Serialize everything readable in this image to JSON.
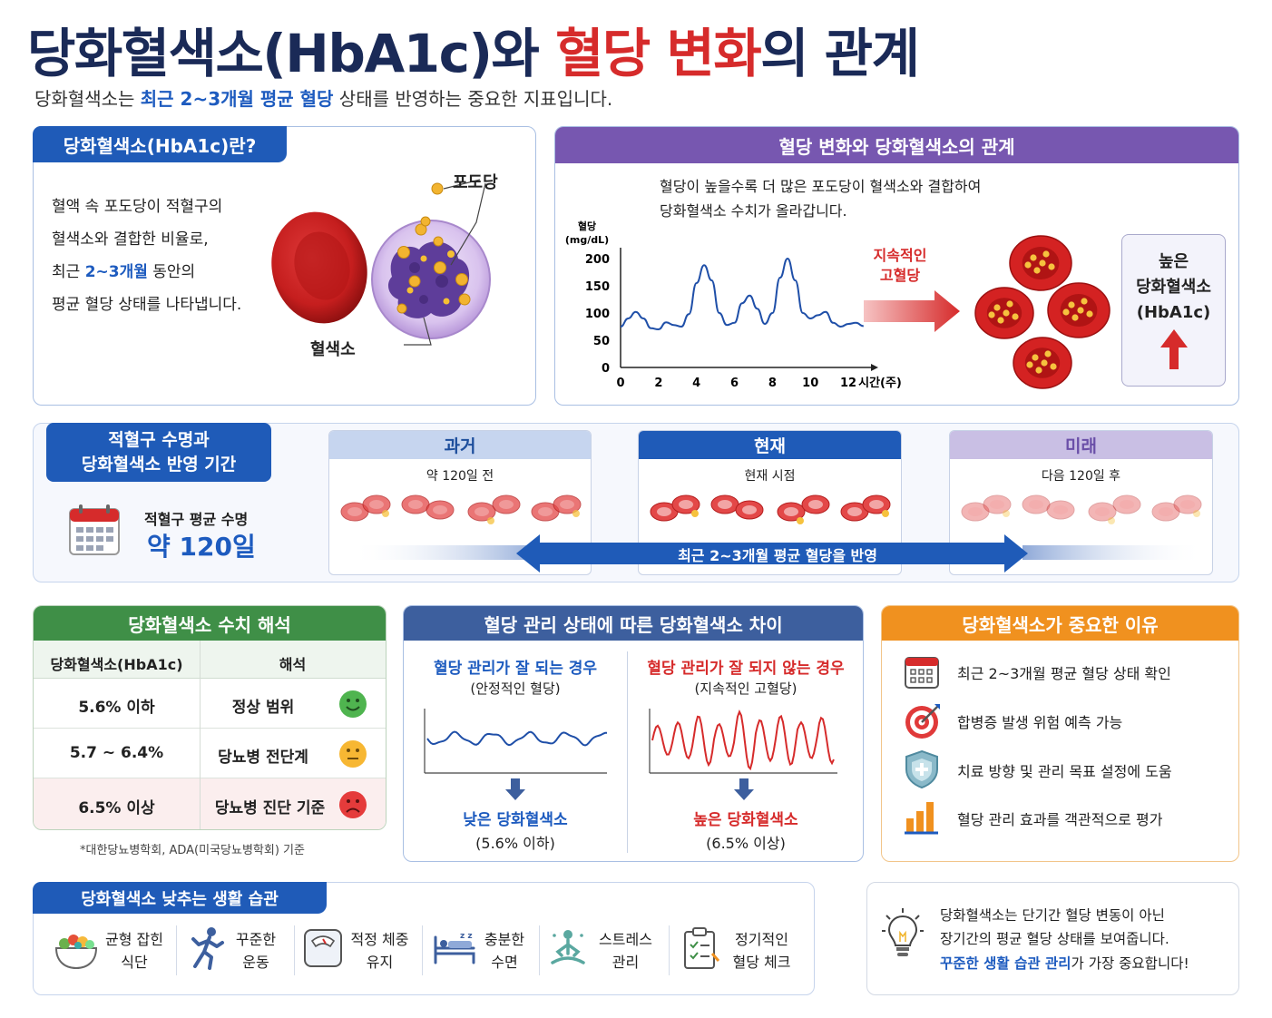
{
  "header": {
    "title_main": "당화혈색소(HbA1c)와 ",
    "title_red": "혈당 변화",
    "title_end": "의 관계",
    "subtitle_pre": "당화혈색소는 ",
    "subtitle_hl": "최근 2~3개월 평균 혈당",
    "subtitle_post": " 상태를 반영하는 중요한 지표입니다."
  },
  "what": {
    "tab": "당화혈색소(HbA1c)란?",
    "line1": "혈액 속 포도당이 적혈구의",
    "line2": "혈색소와 결합한 비율로,",
    "line3_pre": "최근 ",
    "line3_hl": "2~3개월",
    "line3_post": " 동안의",
    "line4": "평균 혈당 상태를 나타냅니다.",
    "label_glucose": "포도당",
    "label_hemoglobin": "혈색소"
  },
  "relation": {
    "header": "혈당 변화와 당화혈색소의 관계",
    "desc1": "혈당이 높을수록 더 많은 포도당이 혈색소와 결합하여",
    "desc2": "당화혈색소 수치가 올라갑니다.",
    "arrow_label1": "지속적인",
    "arrow_label2": "고혈당",
    "box1": "높은",
    "box2": "당화혈색소",
    "box3": "(HbA1c)"
  },
  "chart_data": {
    "type": "line",
    "ylabel_line1": "혈당",
    "ylabel_line2": "(mg/dL)",
    "xlabel": "시간(주)",
    "y_ticks": [
      "0",
      "50",
      "100",
      "150",
      "200"
    ],
    "x_ticks": [
      "0",
      "2",
      "4",
      "6",
      "8",
      "10",
      "12"
    ],
    "xlim": [
      0,
      13
    ],
    "ylim": [
      0,
      220
    ],
    "grid": false,
    "series": [
      {
        "color": "#1f4fa8",
        "x": [
          0,
          0.4,
          0.8,
          1.2,
          1.6,
          2.0,
          2.4,
          2.8,
          3.2,
          3.6,
          4.0,
          4.4,
          4.8,
          5.2,
          5.6,
          6.0,
          6.4,
          6.8,
          7.2,
          7.6,
          8.0,
          8.4,
          8.8,
          9.2,
          9.6,
          10.0,
          10.4,
          10.8,
          11.2,
          11.6,
          12.0,
          12.4,
          12.8
        ],
        "y": [
          75,
          90,
          102,
          90,
          72,
          70,
          83,
          78,
          75,
          98,
          155,
          188,
          160,
          100,
          78,
          82,
          118,
          132,
          108,
          80,
          100,
          165,
          200,
          160,
          100,
          90,
          96,
          102,
          82,
          75,
          80,
          82,
          76
        ]
      }
    ]
  },
  "lifespan": {
    "tab_line1": "적혈구 수명과",
    "tab_line2": "당화혈색소 반영 기간",
    "label": "적혈구 평균 수명",
    "value": "약 120일",
    "past_title": "과거",
    "past_sub": "약 120일 전",
    "now_title": "현재",
    "now_sub": "현재 시점",
    "future_title": "미래",
    "future_sub": "다음 120일 후",
    "arrow_text": "최근 2~3개월 평균 혈당을 반영"
  },
  "interp": {
    "header": "당화혈색소 수치 해석",
    "col1": "당화혈색소(HbA1c)",
    "col2": "해석",
    "rows": [
      {
        "value": "5.6% 이하",
        "meaning": "정상 범위"
      },
      {
        "value": "5.7 ~ 6.4%",
        "meaning": "당뇨병 전단계"
      },
      {
        "value": "6.5% 이상",
        "meaning": "당뇨병 진단 기준"
      }
    ],
    "footnote": "*대한당뇨병학회, ADA(미국당뇨병학회) 기준"
  },
  "compare": {
    "header": "혈당 관리 상태에 따른 당화혈색소 차이",
    "good_title": "혈당 관리가 잘 되는 경우",
    "good_sub": "(안정적인 혈당)",
    "good_result": "낮은 당화혈색소",
    "good_range": "(5.6% 이하)",
    "bad_title": "혈당 관리가 잘 되지 않는 경우",
    "bad_sub": "(지속적인 고혈당)",
    "bad_result": "높은 당화혈색소",
    "bad_range": "(6.5% 이상)"
  },
  "why": {
    "header": "당화혈색소가 중요한 이유",
    "items": [
      "최근 2~3개월 평균 혈당 상태 확인",
      "합병증 발생 위험 예측 가능",
      "치료 방향 및 관리 목표 설정에 도움",
      "혈당 관리 효과를 객관적으로 평가"
    ]
  },
  "habits": {
    "tab": "당화혈색소 낮추는 생활 습관",
    "items": [
      {
        "line1": "균형 잡힌",
        "line2": "식단"
      },
      {
        "line1": "꾸준한",
        "line2": "운동"
      },
      {
        "line1": "적정 체중",
        "line2": "유지"
      },
      {
        "line1": "충분한",
        "line2": "수면"
      },
      {
        "line1": "스트레스",
        "line2": "관리"
      },
      {
        "line1": "정기적인",
        "line2": "혈당 체크"
      }
    ]
  },
  "tip": {
    "line1": "당화혈색소는 단기간 혈당 변동이 아닌",
    "line2": "장기간의 평균 혈당 상태를 보여줍니다.",
    "line3_hl": "꾸준한 생활 습관 관리",
    "line3_post": "가 가장 중요합니다!"
  },
  "colors": {
    "navy": "#1a2a57",
    "red": "#d62b2b",
    "blue": "#1d5bbf",
    "purple": "#7757b0",
    "green": "#3f8f47",
    "steel": "#3d5f9e",
    "orange": "#f0911f"
  }
}
